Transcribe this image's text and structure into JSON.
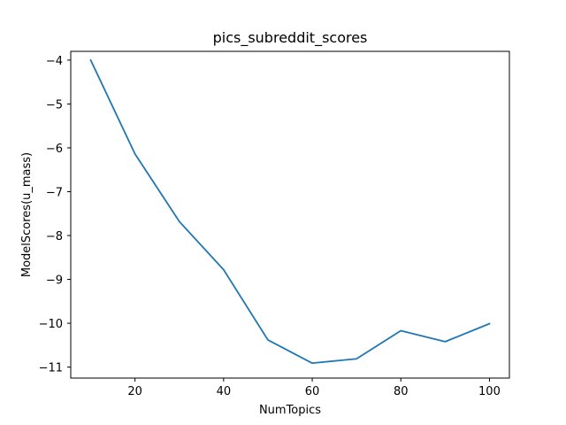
{
  "chart_data": {
    "type": "line",
    "title": "pics_subreddit_scores",
    "xlabel": "NumTopics",
    "ylabel": "ModelScores(u_mass)",
    "xlim": [
      5.5,
      104.5
    ],
    "ylim": [
      -11.25,
      -3.8
    ],
    "xticks": [
      20,
      40,
      60,
      80,
      100
    ],
    "xtick_labels": [
      "20",
      "40",
      "60",
      "80",
      "100"
    ],
    "yticks": [
      -4,
      -5,
      -6,
      -7,
      -8,
      -9,
      -10,
      -11
    ],
    "ytick_labels": [
      "−4",
      "−5",
      "−6",
      "−7",
      "−8",
      "−9",
      "−10",
      "−11"
    ],
    "grid": false,
    "series": [
      {
        "color": "#1f77b4",
        "x": [
          10,
          20,
          30,
          40,
          50,
          60,
          70,
          80,
          90,
          100
        ],
        "y": [
          -4.0,
          -6.14,
          -7.68,
          -8.78,
          -10.38,
          -10.91,
          -10.81,
          -10.17,
          -10.42,
          -10.01
        ]
      }
    ]
  }
}
